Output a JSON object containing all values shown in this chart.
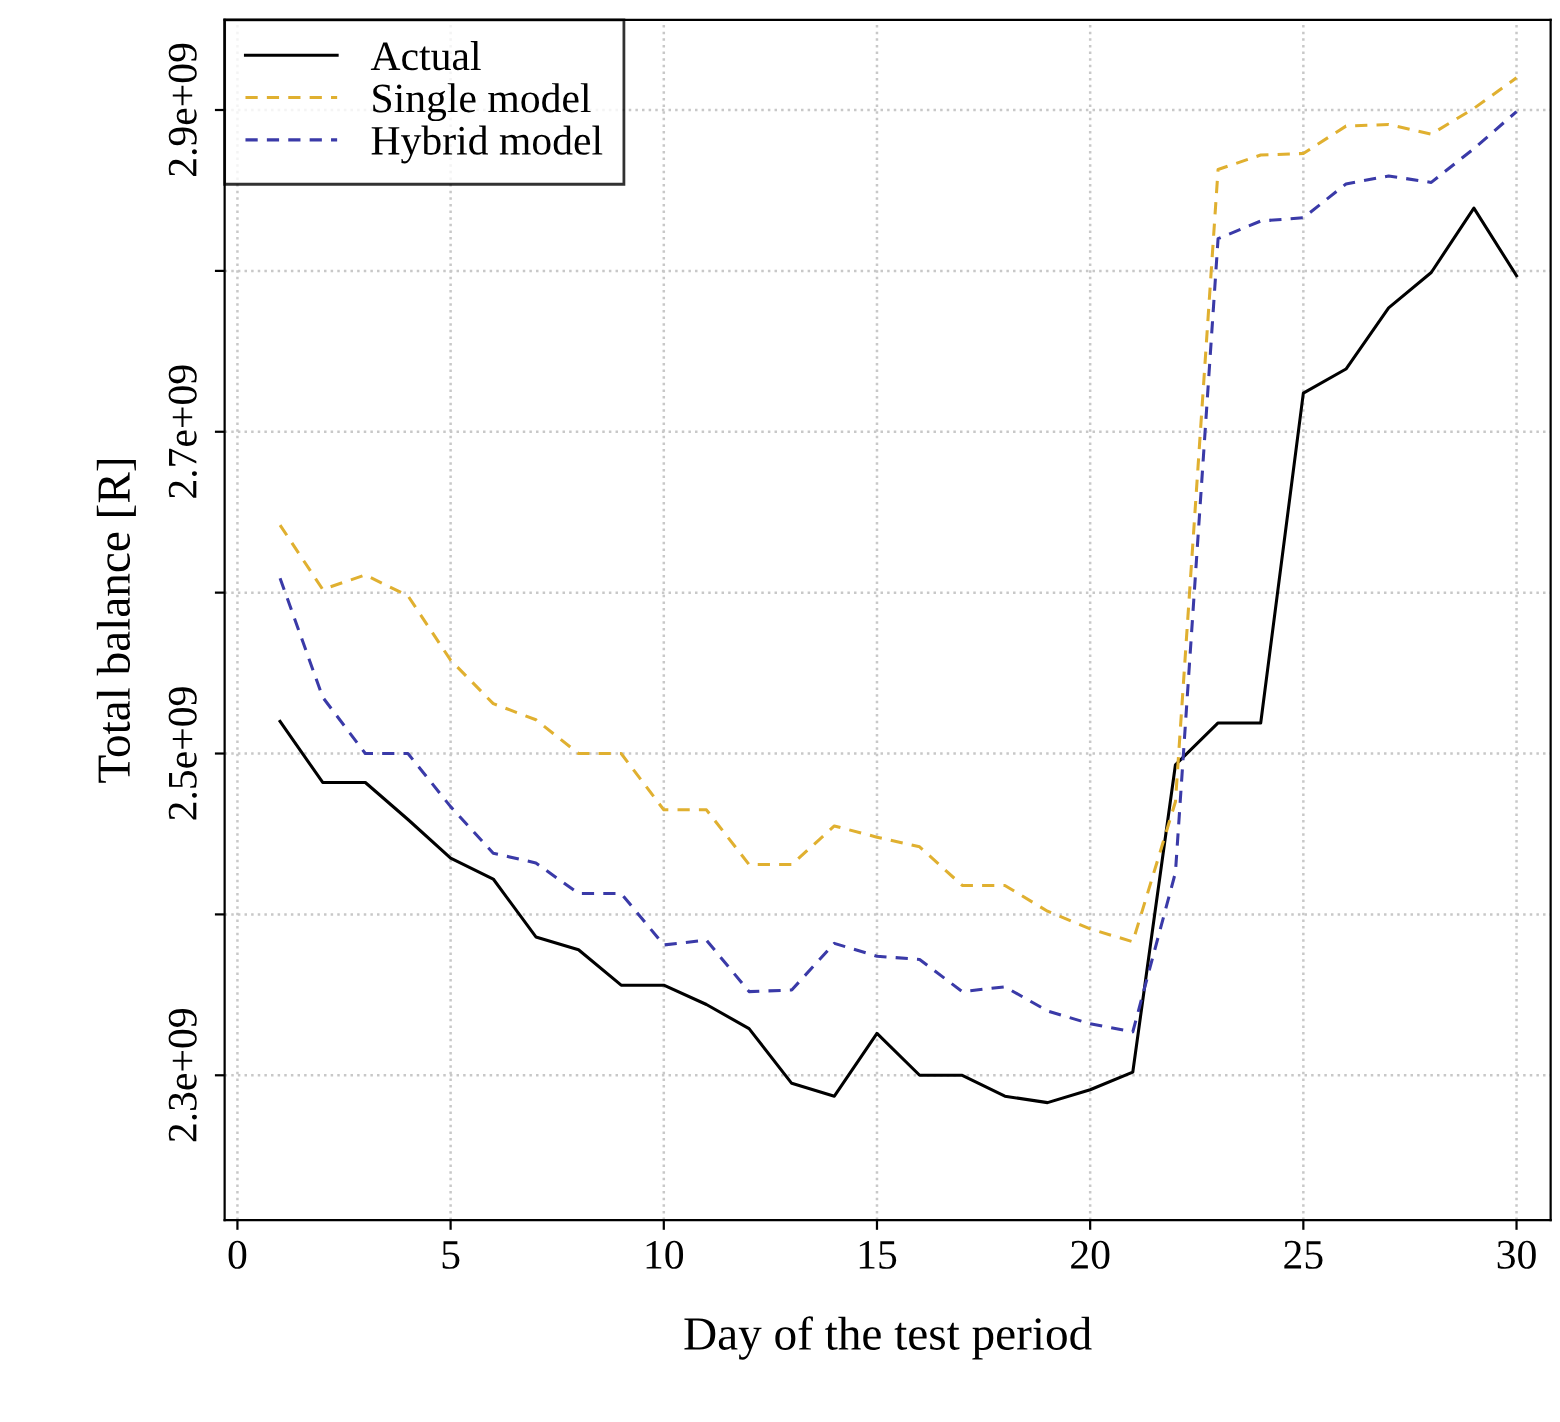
{
  "chart_data": {
    "type": "line",
    "xlabel": "Day of the test period",
    "ylabel": "Total balance [R]",
    "x": [
      1,
      2,
      3,
      4,
      5,
      6,
      7,
      8,
      9,
      10,
      11,
      12,
      13,
      14,
      15,
      16,
      17,
      18,
      19,
      20,
      21,
      22,
      23,
      24,
      25,
      26,
      27,
      28,
      29,
      30
    ],
    "series": [
      {
        "name": "Actual",
        "color": "#000000",
        "line_style": "solid",
        "values": [
          2520000000,
          2482000000,
          2482000000,
          2459000000,
          2435000000,
          2422000000,
          2386000000,
          2378000000,
          2356000000,
          2356000000,
          2344000000,
          2329000000,
          2295000000,
          2287000000,
          2326000000,
          2300000000,
          2300000000,
          2287000000,
          2283000000,
          2291000000,
          2302000000,
          2493000000,
          2519000000,
          2519000000,
          2724000000,
          2739000000,
          2777000000,
          2799000000,
          2839000000,
          2797000000
        ]
      },
      {
        "name": "Single model",
        "color": "#e0b030",
        "line_style": "dashed",
        "values": [
          2642000000,
          2602000000,
          2611000000,
          2598000000,
          2558000000,
          2531000000,
          2521000000,
          2500000000,
          2500000000,
          2465000000,
          2465000000,
          2431000000,
          2431000000,
          2455000000,
          2448000000,
          2442000000,
          2418000000,
          2418000000,
          2402000000,
          2391000000,
          2383000000,
          2470000000,
          2863000000,
          2872000000,
          2873000000,
          2890000000,
          2891000000,
          2885000000,
          2901000000,
          2920000000
        ]
      },
      {
        "name": "Hybrid model",
        "color": "#3a3aa8",
        "line_style": "dashed",
        "values": [
          2609000000,
          2535000000,
          2500000000,
          2500000000,
          2467000000,
          2438000000,
          2432000000,
          2413000000,
          2413000000,
          2381000000,
          2384000000,
          2352000000,
          2353000000,
          2382000000,
          2374000000,
          2372000000,
          2352000000,
          2355000000,
          2340000000,
          2332000000,
          2327000000,
          2426000000,
          2820000000,
          2831000000,
          2833000000,
          2854000000,
          2859000000,
          2855000000,
          2876000000,
          2899000000
        ]
      }
    ],
    "xlim": [
      -0.3,
      30.8
    ],
    "xticks": [
      0,
      5,
      10,
      15,
      20,
      25,
      30
    ],
    "ylim": [
      2210000000,
      2956000000
    ],
    "yticks": [
      {
        "value": 2300000000,
        "label": "2.3e+09"
      },
      {
        "value": 2400000000,
        "label": null
      },
      {
        "value": 2500000000,
        "label": "2.5e+09"
      },
      {
        "value": 2600000000,
        "label": null
      },
      {
        "value": 2700000000,
        "label": "2.7e+09"
      },
      {
        "value": 2800000000,
        "label": null
      },
      {
        "value": 2900000000,
        "label": "2.9e+09"
      }
    ],
    "grid": true,
    "legend": "top left",
    "marker": "none"
  }
}
